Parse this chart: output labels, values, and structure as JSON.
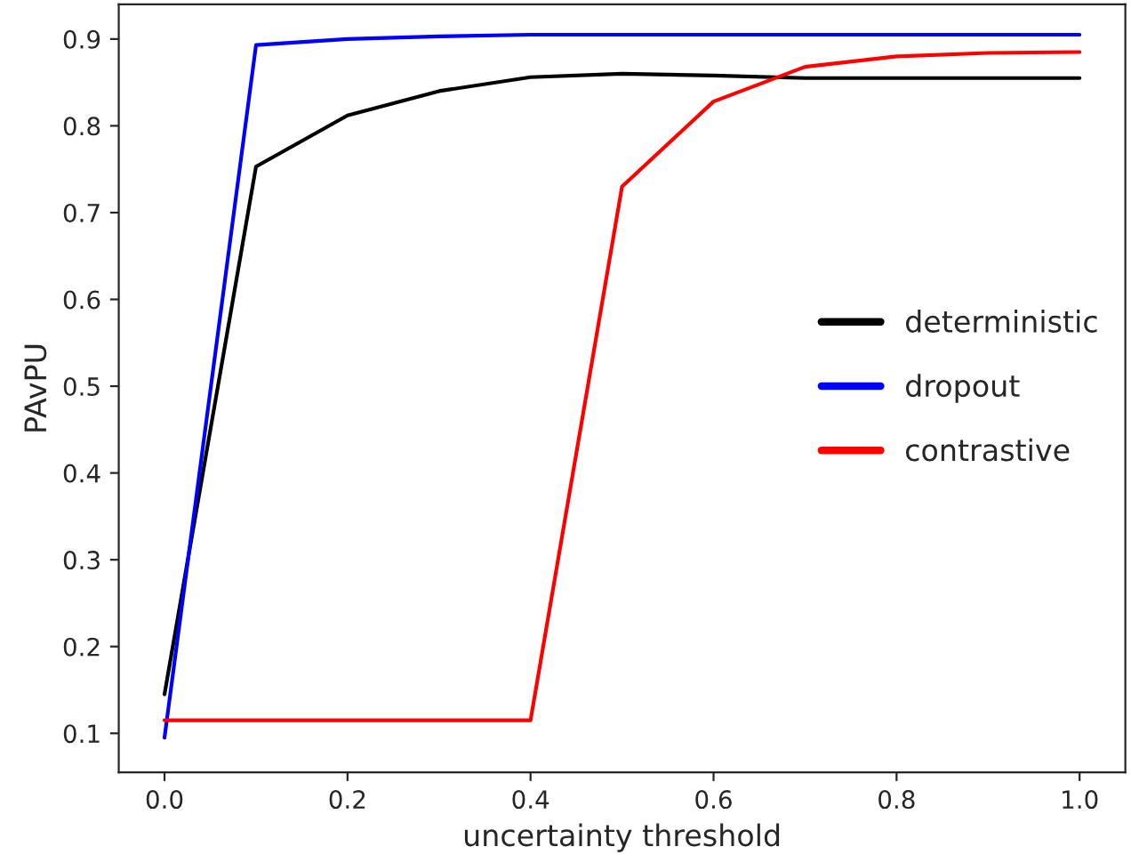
{
  "chart_data": {
    "type": "line",
    "xlabel": "uncertainty threshold",
    "ylabel": "PAvPU",
    "x": [
      0.0,
      0.1,
      0.2,
      0.3,
      0.4,
      0.5,
      0.6,
      0.7,
      0.8,
      0.9,
      1.0
    ],
    "series": [
      {
        "name": "deterministic",
        "color": "#000000",
        "values": [
          0.145,
          0.753,
          0.812,
          0.84,
          0.856,
          0.86,
          0.858,
          0.855,
          0.855,
          0.855,
          0.855
        ]
      },
      {
        "name": "dropout",
        "color": "#0000ff",
        "values": [
          0.095,
          0.893,
          0.9,
          0.903,
          0.905,
          0.905,
          0.905,
          0.905,
          0.905,
          0.905,
          0.905
        ]
      },
      {
        "name": "contrastive",
        "color": "#ff0000",
        "values": [
          0.115,
          0.115,
          0.115,
          0.115,
          0.115,
          0.73,
          0.828,
          0.868,
          0.88,
          0.884,
          0.885
        ]
      }
    ],
    "xlim": [
      -0.05,
      1.05
    ],
    "ylim": [
      0.055,
      0.94
    ],
    "xticks": [
      {
        "value": 0.0,
        "label": "0.0"
      },
      0.2,
      0.4,
      0.6,
      0.8,
      {
        "value": 1.0,
        "label": "1.0"
      }
    ],
    "yticks": [
      0.1,
      0.2,
      0.3,
      0.4,
      0.5,
      0.6,
      0.7,
      0.8,
      0.9
    ],
    "grid": false,
    "legend": "right",
    "line_style": "solid",
    "marker": "none"
  }
}
